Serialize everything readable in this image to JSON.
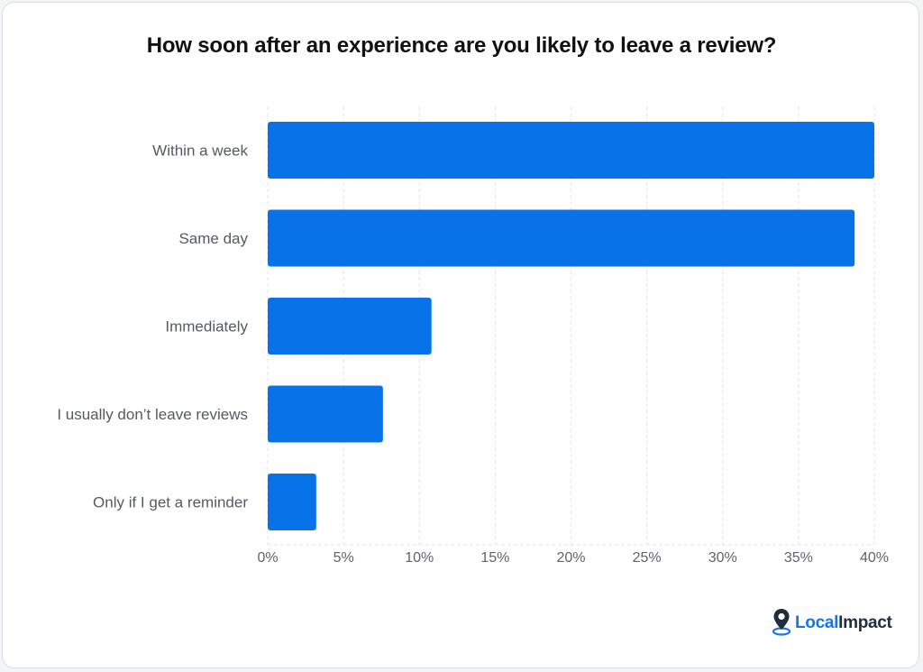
{
  "chart_data": {
    "type": "bar",
    "orientation": "horizontal",
    "title": "How soon after an experience are you likely to leave a review?",
    "categories": [
      "Within a week",
      "Same day",
      "Immediately",
      "I usually don’t leave reviews",
      "Only if I get a reminder"
    ],
    "values": [
      40,
      38.7,
      10.8,
      7.6,
      3.2
    ],
    "unit": "%",
    "xlim": [
      0,
      40
    ],
    "xticks": [
      0,
      5,
      10,
      15,
      20,
      25,
      30,
      35,
      40
    ],
    "xtick_labels": [
      "0%",
      "5%",
      "10%",
      "15%",
      "20%",
      "25%",
      "30%",
      "35%",
      "40%"
    ],
    "xlabel": "",
    "ylabel": "",
    "grid": true,
    "legend": "none",
    "colors": {
      "bar": "#0873e8",
      "grid": "#e2e4e8",
      "tick_label": "#616368",
      "category_label": "#555a60"
    }
  },
  "branding": {
    "logo_part1": "Local",
    "logo_part2": "Impact"
  }
}
